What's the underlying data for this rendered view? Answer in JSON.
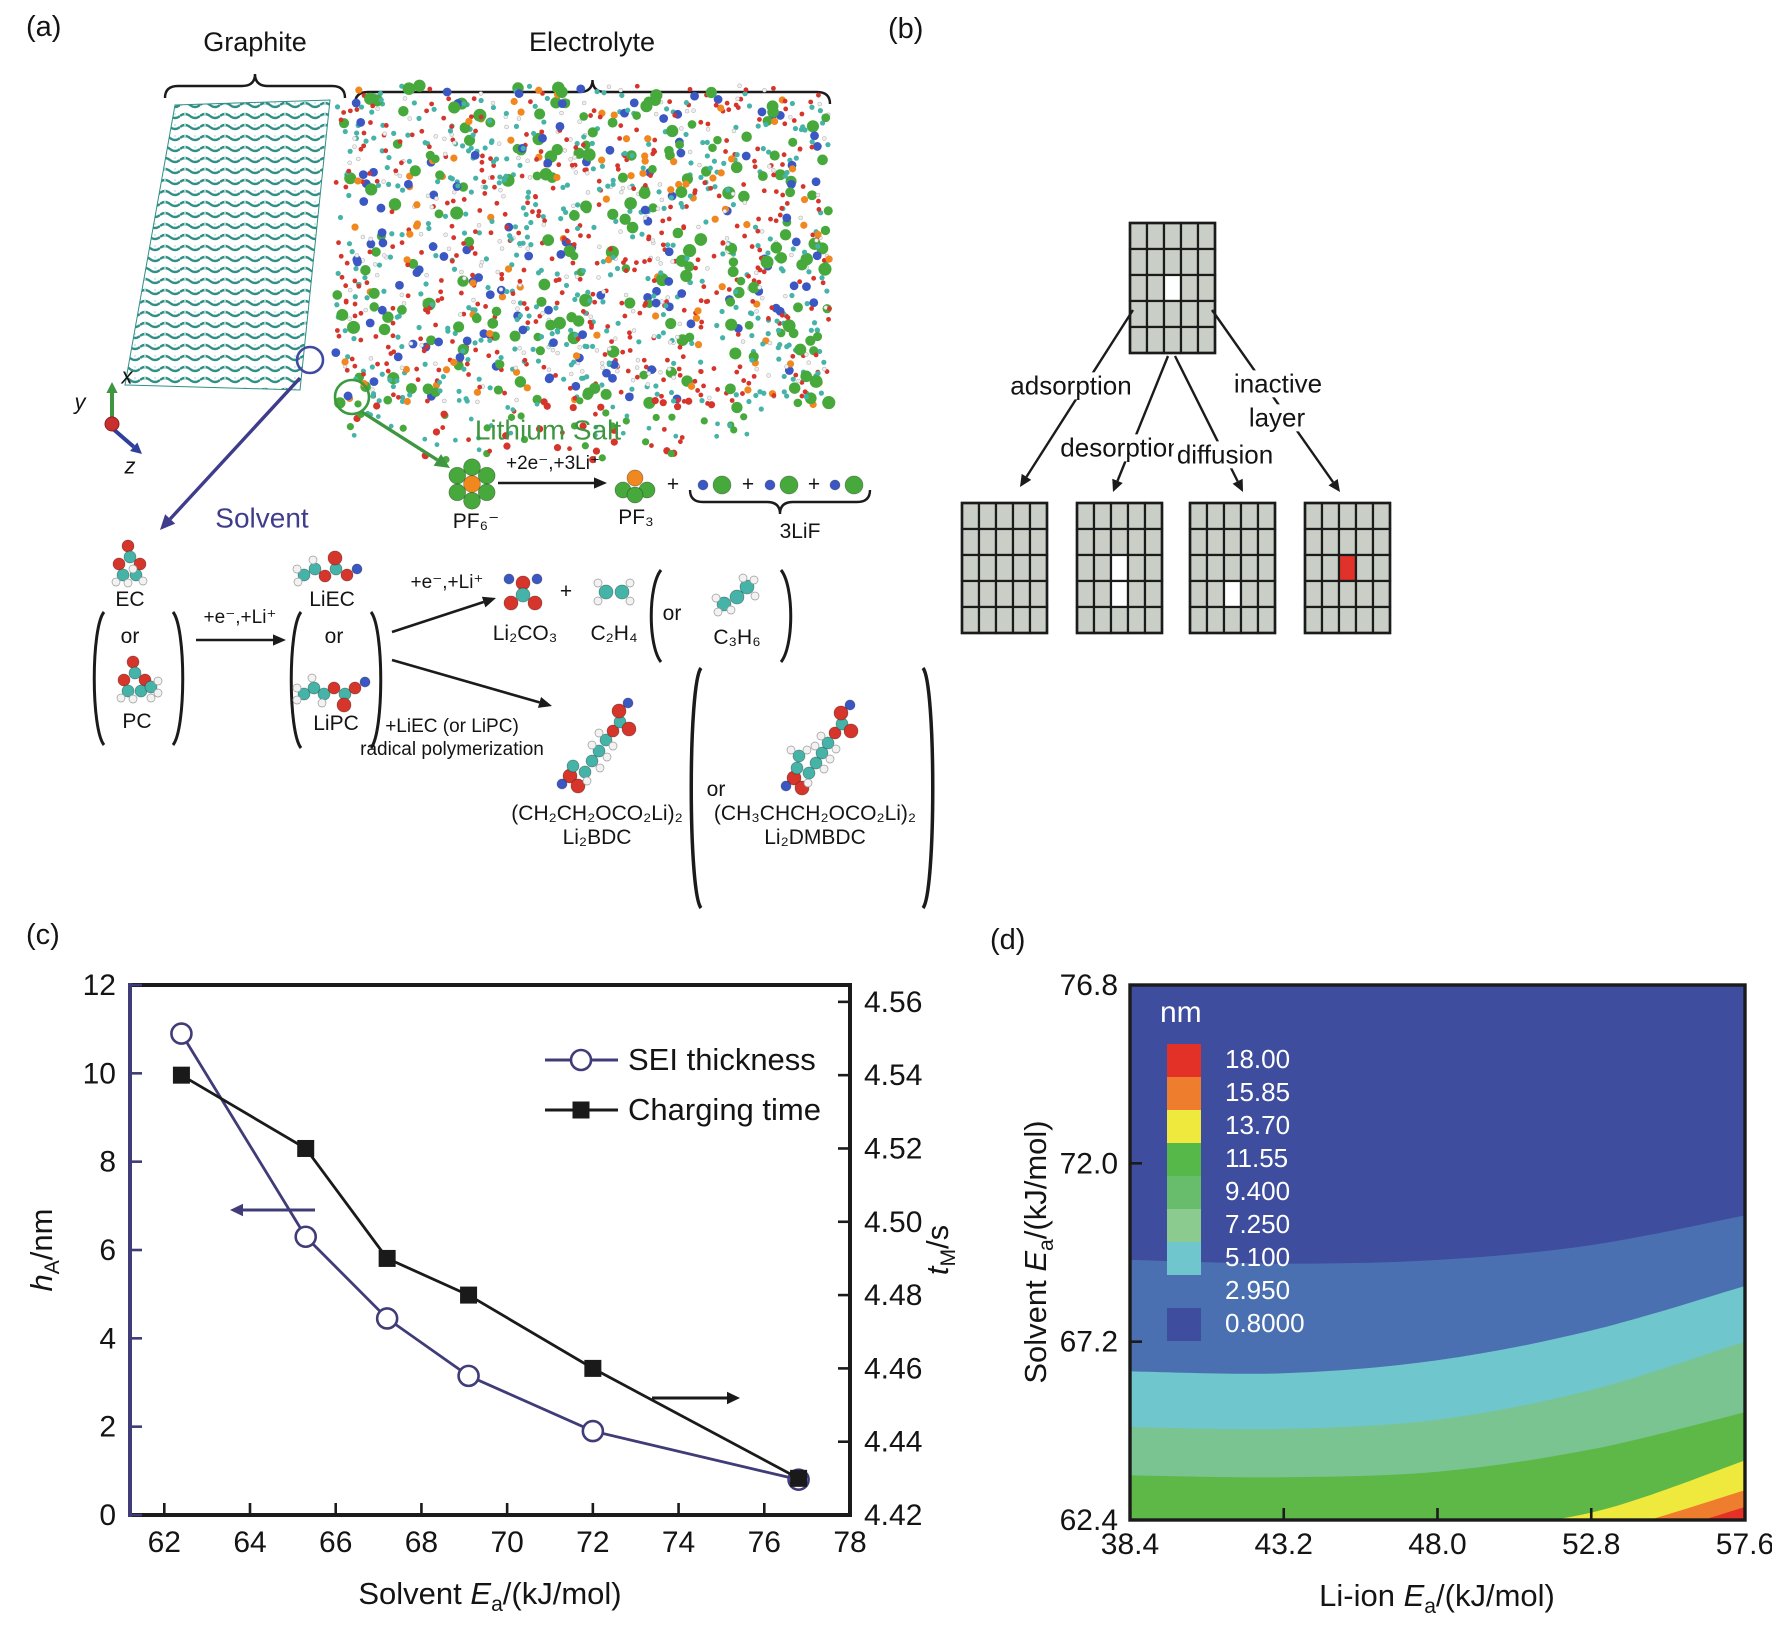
{
  "panels": {
    "a": "(a)",
    "b": "(b)",
    "c": "(c)",
    "d": "(d)"
  },
  "panel_a": {
    "regions": {
      "graphite": "Graphite",
      "electrolyte": "Electrolyte"
    },
    "axis_triad": {
      "x": "x",
      "y": "y",
      "z": "z"
    },
    "callouts": {
      "solvent": "Solvent",
      "lithium_salt": "Lithium Salt"
    },
    "salt_reaction": {
      "reactant": "PF₆⁻",
      "condition": "+2e⁻,+3Li⁺",
      "product1": "PF₃",
      "plus": "+",
      "product2": "3LiF"
    },
    "solvent_reaction": {
      "ec": "EC",
      "or": "or",
      "pc": "PC",
      "step1_condition": "+e⁻,+Li⁺",
      "liec": "LiEC",
      "lipc": "LiPC",
      "branch1_condition": "+e⁻,+Li⁺",
      "li2co3": "Li₂CO₃",
      "plus": "+",
      "c2h4": "C₂H₄",
      "c3h6": "C₃H₆",
      "branch2_condition_line1": "+LiEC (or LiPC)",
      "branch2_condition_line2": "radical polymerization",
      "product1_formula": "(CH₂CH₂OCO₂Li)₂",
      "product1_name": "Li₂BDC",
      "product2_formula": "(CH₃CHCH₂OCO₂Li)₂",
      "product2_name": "Li₂DMBDC"
    }
  },
  "panel_b": {
    "labels": {
      "adsorption": "adsorption",
      "desorption": "desorption",
      "diffusion": "diffusion",
      "inactive_line1": "inactive",
      "inactive_line2": "layer"
    },
    "grid_style": {
      "rows": 5,
      "cols": 5,
      "cell_fill": "#c9cfc6",
      "cell_stroke": "#1b1b1b",
      "vacancy_fill": "#ffffff",
      "inactive_fill": "#e0322a"
    },
    "parent_grid": {
      "vacancies": [
        [
          2,
          2
        ]
      ],
      "inactive": []
    },
    "child_grids": [
      {
        "name": "adsorption",
        "vacancies": [],
        "inactive": []
      },
      {
        "name": "desorption",
        "vacancies": [
          [
            2,
            2
          ],
          [
            3,
            2
          ]
        ],
        "inactive": []
      },
      {
        "name": "diffusion",
        "vacancies": [
          [
            3,
            2
          ]
        ],
        "inactive": []
      },
      {
        "name": "inactive-layer",
        "vacancies": [],
        "inactive": [
          [
            2,
            2
          ]
        ]
      }
    ]
  },
  "chart_data": [
    {
      "panel": "c",
      "type": "line",
      "xlabel_parts": [
        {
          "t": "Solvent "
        },
        {
          "t": "E",
          "i": 1
        },
        {
          "t": "a",
          "sub": 1
        },
        {
          "t": "/(kJ/mol)"
        }
      ],
      "x_ticks": [
        62,
        64,
        66,
        68,
        70,
        72,
        74,
        76,
        78
      ],
      "xlim": [
        61.2,
        78
      ],
      "left_axis": {
        "label_parts": [
          {
            "t": "h",
            "i": 1
          },
          {
            "t": "A",
            "sub": 1
          },
          {
            "t": "/nm"
          }
        ],
        "ticks": [
          0,
          2,
          4,
          6,
          8,
          10,
          12
        ],
        "lim": [
          0,
          12
        ],
        "spine_color": "#3f3c78"
      },
      "right_axis": {
        "label_parts": [
          {
            "t": "t",
            "i": 1
          },
          {
            "t": "M",
            "sub": 1
          },
          {
            "t": "/s"
          }
        ],
        "ticks": [
          "4.42",
          "4.44",
          "4.46",
          "4.48",
          "4.50",
          "4.52",
          "4.54",
          "4.56"
        ],
        "lim": [
          4.42,
          4.5646
        ]
      },
      "series": [
        {
          "name": "SEI thickness",
          "axis": "left",
          "marker": "circle-open",
          "color": "#3f3c78",
          "x": [
            62.4,
            65.3,
            67.2,
            69.1,
            72.0,
            76.8
          ],
          "y": [
            10.9,
            6.3,
            4.45,
            3.15,
            1.9,
            0.8
          ]
        },
        {
          "name": "Charging time",
          "axis": "right",
          "marker": "square-filled",
          "color": "#1a1a1a",
          "x": [
            62.4,
            65.3,
            67.2,
            69.1,
            72.0,
            76.8
          ],
          "y": [
            4.54,
            4.52,
            4.49,
            4.48,
            4.46,
            4.43
          ]
        }
      ],
      "legend": {
        "position": "top-right"
      },
      "grid": false
    },
    {
      "panel": "d",
      "type": "contour",
      "xlabel_parts": [
        {
          "t": "Li-ion "
        },
        {
          "t": "E",
          "i": 1
        },
        {
          "t": "a",
          "sub": 1
        },
        {
          "t": "/(kJ/mol)"
        }
      ],
      "ylabel_parts": [
        {
          "t": "Solvent "
        },
        {
          "t": "E",
          "i": 1
        },
        {
          "t": "a",
          "sub": 1
        },
        {
          "t": "/(kJ/mol)"
        }
      ],
      "x_ticks": [
        "38.4",
        "43.2",
        "48.0",
        "52.8",
        "57.6"
      ],
      "y_ticks": [
        "76.8",
        "72.0",
        "67.2",
        "62.4"
      ],
      "xlim": [
        38.4,
        57.6
      ],
      "ylim": [
        62.4,
        76.8
      ],
      "legend": {
        "title": "nm",
        "levels": [
          "18.00",
          "15.85",
          "13.70",
          "11.55",
          "9.400",
          "7.250",
          "5.100",
          "2.950",
          "0.8000"
        ],
        "colors": [
          "#e33127",
          "#ee7d2d",
          "#efe93e",
          "#56b848",
          "#67bd6b",
          "#8ccb8f",
          "#6fc6cc",
          "#4a70b2",
          "#3e4d9e"
        ]
      },
      "band_colors_low_to_high": [
        "#3e4d9e",
        "#4a70b2",
        "#6fc6cc",
        "#79c491",
        "#5eb847",
        "#efe93e",
        "#ee7d2d",
        "#e33127"
      ],
      "boundary_x": [
        38.4,
        43.2,
        48.0,
        52.8,
        57.6
      ],
      "boundaries": [
        {
          "level": 2.95,
          "y": [
            69.4,
            69.3,
            69.4,
            69.8,
            70.6
          ]
        },
        {
          "level": 5.1,
          "y": [
            66.4,
            66.35,
            66.7,
            67.5,
            68.7
          ]
        },
        {
          "level": 7.25,
          "y": [
            64.9,
            64.85,
            65.1,
            65.9,
            67.2
          ]
        },
        {
          "level": 9.4,
          "y": [
            63.6,
            63.55,
            63.7,
            64.3,
            65.3
          ]
        },
        {
          "level": 11.55,
          "y": [
            61.9,
            61.9,
            62.1,
            62.6,
            64.0
          ]
        },
        {
          "level": 13.7,
          "y": [
            61.4,
            61.4,
            61.5,
            62.0,
            63.2
          ]
        },
        {
          "level": 15.85,
          "y": [
            60.9,
            60.9,
            61.0,
            61.55,
            62.75
          ]
        }
      ]
    }
  ]
}
